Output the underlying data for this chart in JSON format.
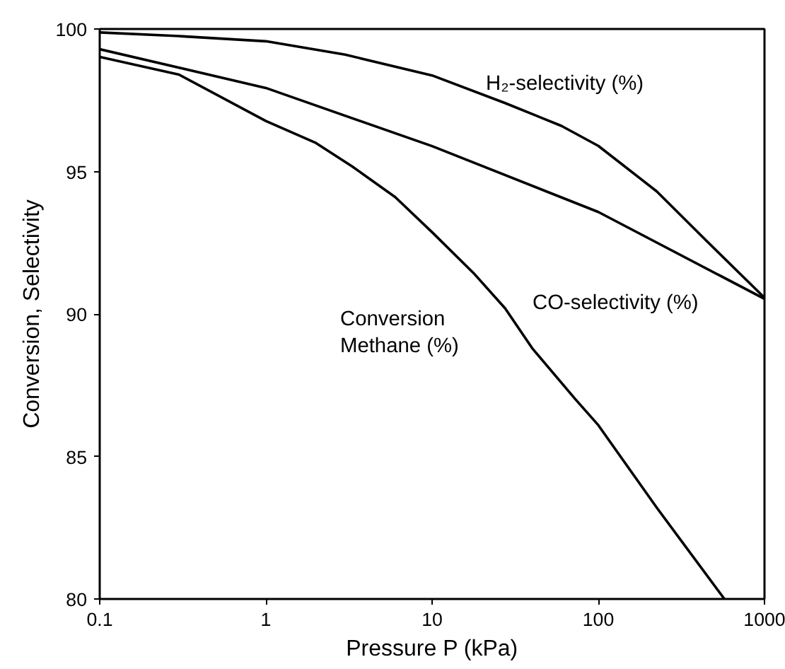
{
  "chart_data": {
    "type": "line",
    "xlabel": "Pressure P (kPa)",
    "ylabel": "Conversion, Selectivity",
    "log": "x",
    "grid": false,
    "marker": "none",
    "line_style": "solid",
    "xlim": [
      0.1,
      1000
    ],
    "ylim": [
      80,
      100
    ],
    "xticks": [
      0.1,
      1,
      10,
      100,
      1000
    ],
    "yticks": [
      80,
      85,
      90,
      95,
      100
    ],
    "series": [
      {
        "name": "H₂-selectivity (%)",
        "color": "#000000",
        "x": [
          0.1,
          0.3,
          1,
          3,
          10,
          27.5,
          60,
          100,
          225,
          460,
          1000
        ],
        "values": [
          99.88,
          99.75,
          99.57,
          99.1,
          98.37,
          97.4,
          96.6,
          95.9,
          94.3,
          92.5,
          90.57
        ]
      },
      {
        "name": "CO-selectivity (%)",
        "color": "#000000",
        "x": [
          0.1,
          1,
          10,
          100,
          1000
        ],
        "values": [
          99.29,
          97.93,
          95.89,
          93.58,
          90.53
        ]
      },
      {
        "name": "Conversion\nMethane (%)",
        "color": "#000000",
        "x": [
          0.1,
          0.3,
          1,
          2,
          3.3,
          6,
          10,
          18,
          27.5,
          40,
          73,
          100,
          225,
          574
        ],
        "values": [
          99.02,
          98.4,
          96.77,
          96.0,
          95.18,
          94.1,
          92.87,
          91.4,
          90.2,
          88.8,
          87.0,
          86.1,
          83.2,
          80.0
        ]
      }
    ]
  }
}
